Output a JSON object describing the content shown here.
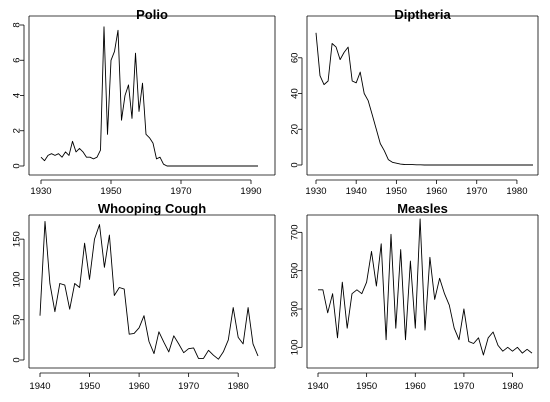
{
  "chart_data": [
    {
      "type": "line",
      "title": "Polio",
      "xlabel": "",
      "ylabel": "",
      "xlim": [
        1930,
        1992
      ],
      "ylim": [
        0,
        8
      ],
      "xticks": [
        1930,
        1950,
        1970,
        1990
      ],
      "yticks": [
        0,
        2,
        4,
        6,
        8
      ],
      "grid": false,
      "series": [
        {
          "x": [
            1930,
            1931,
            1932,
            1933,
            1934,
            1935,
            1936,
            1937,
            1938,
            1939,
            1940,
            1941,
            1942,
            1943,
            1944,
            1945,
            1946,
            1947,
            1948,
            1949,
            1950,
            1951,
            1952,
            1953,
            1954,
            1955,
            1956,
            1957,
            1958,
            1959,
            1960,
            1961,
            1962,
            1963,
            1964,
            1965,
            1966,
            1967,
            1968,
            1969,
            1970,
            1971,
            1972,
            1973,
            1974,
            1975,
            1976,
            1977,
            1978,
            1979,
            1980,
            1981,
            1982,
            1983,
            1984,
            1985,
            1986,
            1987,
            1988,
            1989,
            1990,
            1991,
            1992
          ],
          "y": [
            0.5,
            0.3,
            0.6,
            0.7,
            0.6,
            0.7,
            0.5,
            0.8,
            0.6,
            1.4,
            0.8,
            1.0,
            0.8,
            0.5,
            0.5,
            0.4,
            0.5,
            0.9,
            7.9,
            1.8,
            6.0,
            6.5,
            7.7,
            2.6,
            4.0,
            4.6,
            2.7,
            6.4,
            3.1,
            4.7,
            1.8,
            1.6,
            1.3,
            0.4,
            0.5,
            0.1,
            0.0,
            0,
            0,
            0,
            0,
            0,
            0,
            0,
            0,
            0,
            0,
            0,
            0,
            0,
            0,
            0,
            0,
            0,
            0,
            0,
            0,
            0,
            0,
            0,
            0,
            0,
            0
          ]
        }
      ]
    },
    {
      "type": "line",
      "title": "Diptheria",
      "xlabel": "",
      "ylabel": "",
      "xlim": [
        1930,
        1984
      ],
      "ylim": [
        0,
        75
      ],
      "xticks": [
        1930,
        1940,
        1950,
        1960,
        1970,
        1980
      ],
      "yticks": [
        0,
        20,
        40,
        60
      ],
      "grid": false,
      "series": [
        {
          "x": [
            1930,
            1931,
            1932,
            1933,
            1934,
            1935,
            1936,
            1937,
            1938,
            1939,
            1940,
            1941,
            1942,
            1943,
            1944,
            1945,
            1946,
            1947,
            1948,
            1949,
            1950,
            1951,
            1952,
            1953,
            1954,
            1955,
            1956,
            1957,
            1958,
            1959,
            1960,
            1961,
            1962,
            1963,
            1964,
            1965,
            1966,
            1967,
            1968,
            1969,
            1970,
            1971,
            1972,
            1973,
            1974,
            1975,
            1976,
            1977,
            1978,
            1979,
            1980,
            1981,
            1982,
            1983,
            1984
          ],
          "y": [
            74,
            50,
            45,
            47,
            68,
            66,
            59,
            63,
            66,
            47,
            46,
            52,
            40,
            36,
            28,
            20,
            12,
            8,
            3,
            1.5,
            1,
            0.5,
            0.3,
            0.2,
            0.2,
            0.1,
            0.1,
            0,
            0,
            0,
            0,
            0,
            0,
            0,
            0,
            0,
            0,
            0,
            0,
            0,
            0,
            0,
            0,
            0,
            0,
            0,
            0,
            0,
            0,
            0,
            0,
            0,
            0,
            0,
            0
          ]
        }
      ]
    },
    {
      "type": "line",
      "title": "Whooping Cough",
      "xlabel": "",
      "ylabel": "",
      "xlim": [
        1940,
        1984
      ],
      "ylim": [
        0,
        175
      ],
      "xticks": [
        1940,
        1950,
        1960,
        1970,
        1980
      ],
      "yticks": [
        0,
        50,
        100,
        150
      ],
      "grid": false,
      "series": [
        {
          "x": [
            1940,
            1941,
            1942,
            1943,
            1944,
            1945,
            1946,
            1947,
            1948,
            1949,
            1950,
            1951,
            1952,
            1953,
            1954,
            1955,
            1956,
            1957,
            1958,
            1959,
            1960,
            1961,
            1962,
            1963,
            1964,
            1965,
            1966,
            1967,
            1968,
            1969,
            1970,
            1971,
            1972,
            1973,
            1974,
            1975,
            1976,
            1977,
            1978,
            1979,
            1980,
            1981,
            1982,
            1983,
            1984
          ],
          "y": [
            55,
            172,
            95,
            60,
            95,
            93,
            63,
            95,
            90,
            145,
            100,
            150,
            168,
            115,
            155,
            80,
            90,
            88,
            32,
            33,
            40,
            55,
            23,
            8,
            35,
            22,
            10,
            30,
            20,
            9,
            14,
            15,
            2,
            2,
            12,
            6,
            1,
            10,
            25,
            65,
            28,
            20,
            65,
            20,
            5
          ]
        }
      ]
    },
    {
      "type": "line",
      "title": "Measles",
      "xlabel": "",
      "ylabel": "",
      "xlim": [
        1940,
        1984
      ],
      "ylim": [
        60,
        780
      ],
      "xticks": [
        1940,
        1950,
        1960,
        1970,
        1980
      ],
      "yticks": [
        100,
        300,
        500,
        700
      ],
      "grid": false,
      "series": [
        {
          "x": [
            1940,
            1941,
            1942,
            1943,
            1944,
            1945,
            1946,
            1947,
            1948,
            1949,
            1950,
            1951,
            1952,
            1953,
            1954,
            1955,
            1956,
            1957,
            1958,
            1959,
            1960,
            1961,
            1962,
            1963,
            1964,
            1965,
            1966,
            1967,
            1968,
            1969,
            1970,
            1971,
            1972,
            1973,
            1974,
            1975,
            1976,
            1977,
            1978,
            1979,
            1980,
            1981,
            1982,
            1983,
            1984
          ],
          "y": [
            400,
            400,
            280,
            380,
            150,
            440,
            200,
            380,
            400,
            380,
            440,
            600,
            420,
            640,
            140,
            690,
            200,
            610,
            140,
            550,
            200,
            770,
            190,
            570,
            350,
            460,
            380,
            320,
            200,
            140,
            300,
            130,
            120,
            150,
            60,
            150,
            180,
            110,
            80,
            100,
            80,
            100,
            70,
            90,
            70
          ]
        }
      ]
    }
  ]
}
